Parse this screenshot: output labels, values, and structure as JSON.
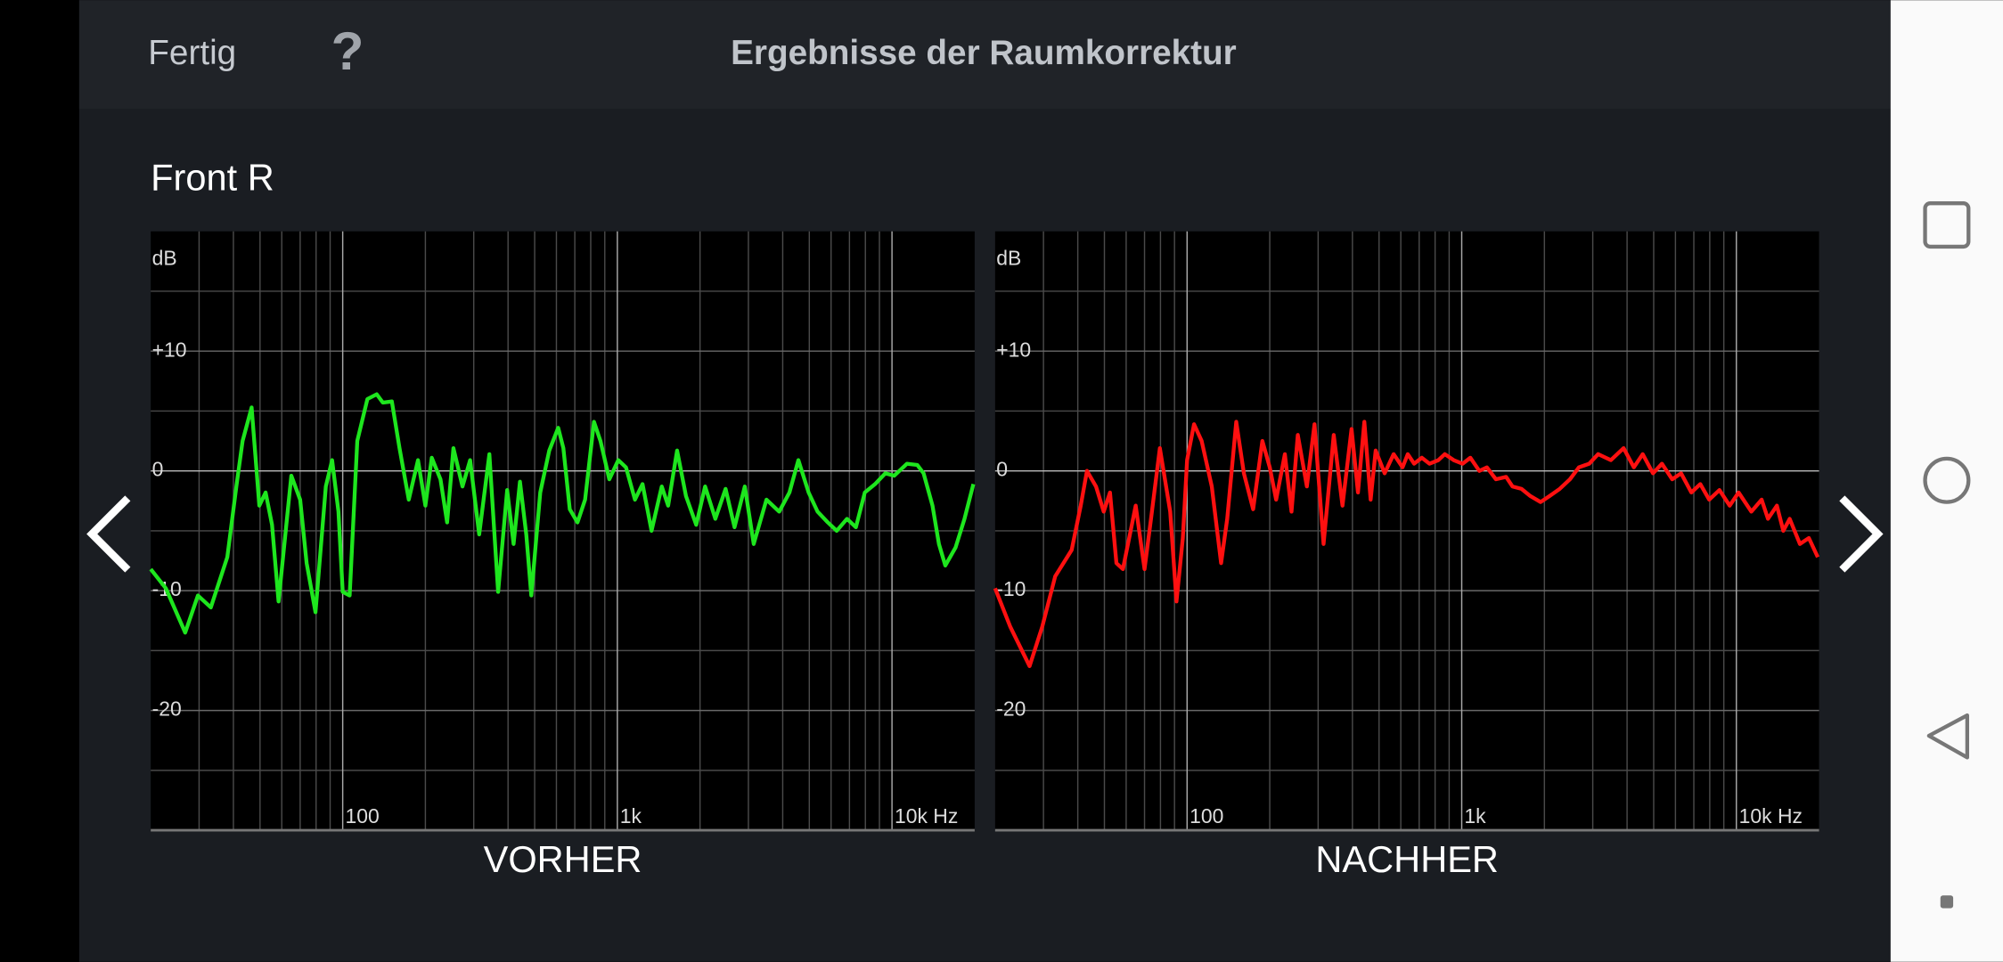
{
  "header": {
    "done": "Fertig",
    "help": "?",
    "title": "Ergebnisse der Raumkorrektur"
  },
  "channel": "Front R",
  "chart_data": [
    {
      "type": "line",
      "caption": "VORHER",
      "ylabel": "dB",
      "xscale": "log",
      "grid": true,
      "xlim": [
        20,
        20000
      ],
      "ylim": [
        -30,
        20
      ],
      "xticks": [
        100,
        {
          "value": 1000,
          "label": "1k"
        },
        {
          "value": 10000,
          "label": "10k Hz"
        }
      ],
      "minor_xticks": [
        30,
        40,
        50,
        60,
        70,
        80,
        90,
        200,
        300,
        400,
        500,
        600,
        700,
        800,
        900,
        2000,
        3000,
        4000,
        5000,
        6000,
        7000,
        8000,
        9000
      ],
      "yticks": [
        {
          "value": 10,
          "label": "+10"
        },
        0,
        -10,
        -20
      ],
      "minor_yticks": [
        15,
        5,
        -5,
        -15,
        -25
      ],
      "x": [
        20,
        22.7,
        26.7,
        29.7,
        33.1,
        38,
        41,
        43.2,
        46.6,
        49.7,
        52.4,
        55.3,
        58.4,
        65,
        70,
        73.9,
        79.6,
        86.8,
        91.5,
        96.5,
        100,
        106,
        113,
        123,
        133,
        140,
        151,
        161,
        174,
        188,
        200,
        211,
        227,
        240,
        253,
        273,
        291,
        314,
        342,
        368,
        397,
        419,
        442,
        466,
        486,
        524,
        565,
        609,
        636,
        671,
        716,
        763,
        822,
        868,
        935,
        1008,
        1075,
        1159,
        1235,
        1332,
        1451,
        1531,
        1650,
        1778,
        1937,
        2087,
        2274,
        2478,
        2671,
        2911,
        3137,
        3491,
        3885,
        4233,
        4561,
        4970,
        5357,
        5838,
        6292,
        6856,
        7390,
        7962,
        8677,
        9455,
        10188,
        11340,
        12358,
        13032,
        14044,
        14822,
        15634,
        17036,
        18364,
        19786
      ],
      "series": [
        {
          "color": "#1ee61e",
          "values": [
            -8.2,
            -9.8,
            -13.5,
            -10.4,
            -11.4,
            -7.2,
            -1.3,
            2.5,
            5.3,
            -2.9,
            -1.8,
            -4.5,
            -10.9,
            -0.4,
            -2.4,
            -7.7,
            -11.8,
            -1.3,
            0.9,
            -3.4,
            -10.1,
            -10.4,
            2.5,
            6.0,
            6.4,
            5.7,
            5.8,
            1.9,
            -2.4,
            0.9,
            -2.9,
            1.1,
            -0.7,
            -4.3,
            1.9,
            -1.3,
            0.9,
            -5.3,
            1.4,
            -10.1,
            -1.6,
            -6.1,
            -0.9,
            -5.3,
            -10.4,
            -1.8,
            1.7,
            3.6,
            1.9,
            -3.2,
            -4.3,
            -2.4,
            4.1,
            2.5,
            -0.7,
            0.9,
            0.3,
            -2.4,
            -1.1,
            -5.0,
            -1.3,
            -2.9,
            1.7,
            -2.1,
            -4.5,
            -1.3,
            -4.0,
            -1.5,
            -4.7,
            -1.3,
            -6.1,
            -2.4,
            -3.4,
            -1.8,
            0.9,
            -1.8,
            -3.4,
            -4.3,
            -5.0,
            -4.0,
            -4.7,
            -1.8,
            -1.1,
            -0.2,
            -0.4,
            0.6,
            0.5,
            -0.2,
            -2.9,
            -6.1,
            -7.9,
            -6.4,
            -4.0,
            -1.1
          ]
        }
      ]
    },
    {
      "type": "line",
      "caption": "NACHHER",
      "ylabel": "dB",
      "xscale": "log",
      "grid": true,
      "xlim": [
        20,
        20000
      ],
      "ylim": [
        -30,
        20
      ],
      "xticks": [
        100,
        {
          "value": 1000,
          "label": "1k"
        },
        {
          "value": 10000,
          "label": "10k Hz"
        }
      ],
      "minor_xticks": [
        30,
        40,
        50,
        60,
        70,
        80,
        90,
        200,
        300,
        400,
        500,
        600,
        700,
        800,
        900,
        2000,
        3000,
        4000,
        5000,
        6000,
        7000,
        8000,
        9000
      ],
      "yticks": [
        {
          "value": 10,
          "label": "+10"
        },
        0,
        -10,
        -20
      ],
      "minor_yticks": [
        15,
        5,
        -5,
        -15,
        -25
      ],
      "x": [
        20,
        22.7,
        26.7,
        29.7,
        33.1,
        38,
        41,
        43.2,
        46.6,
        49.7,
        52.4,
        55.3,
        58.4,
        65,
        70,
        73.9,
        79.6,
        86.8,
        91.5,
        96.5,
        100,
        106,
        113,
        123,
        133,
        140,
        151,
        161,
        174,
        188,
        200,
        211,
        227,
        240,
        253,
        273,
        291,
        314,
        342,
        368,
        397,
        419,
        442,
        466,
        486,
        524,
        565,
        609,
        636,
        671,
        716,
        763,
        822,
        868,
        935,
        1008,
        1075,
        1159,
        1235,
        1332,
        1451,
        1531,
        1650,
        1778,
        1937,
        2087,
        2274,
        2478,
        2671,
        2911,
        3137,
        3491,
        3885,
        4233,
        4561,
        4970,
        5357,
        5838,
        6292,
        6856,
        7390,
        7962,
        8677,
        9455,
        10188,
        11340,
        12358,
        13032,
        14044,
        14822,
        15634,
        17036,
        18364,
        19786
      ],
      "series": [
        {
          "color": "#ff1010",
          "values": [
            -9.8,
            -13.0,
            -16.3,
            -13.0,
            -8.8,
            -6.6,
            -2.9,
            0,
            -1.3,
            -3.4,
            -1.8,
            -7.7,
            -8.2,
            -2.9,
            -8.2,
            -4.0,
            1.9,
            -3.4,
            -10.9,
            -5.6,
            0.9,
            3.9,
            2.5,
            -1.3,
            -7.7,
            -4.0,
            4.1,
            -0.2,
            -3.2,
            2.5,
            0.3,
            -2.4,
            1.4,
            -3.4,
            3.0,
            -1.3,
            3.9,
            -6.1,
            3.0,
            -2.9,
            3.5,
            -1.8,
            4.1,
            -2.4,
            1.7,
            -0.2,
            1.4,
            0.3,
            1.4,
            0.6,
            1.1,
            0.6,
            0.9,
            1.4,
            0.9,
            0.6,
            1.1,
            0,
            0.3,
            -0.7,
            -0.5,
            -1.3,
            -1.5,
            -2.1,
            -2.6,
            -2.1,
            -1.5,
            -0.7,
            0.3,
            0.6,
            1.4,
            0.9,
            1.9,
            0.3,
            1.4,
            -0.2,
            0.6,
            -0.7,
            -0.2,
            -1.8,
            -1.1,
            -2.4,
            -1.6,
            -2.9,
            -1.8,
            -3.4,
            -2.4,
            -4.0,
            -2.9,
            -5.0,
            -4.0,
            -6.1,
            -5.6,
            -7.2
          ]
        }
      ]
    }
  ]
}
